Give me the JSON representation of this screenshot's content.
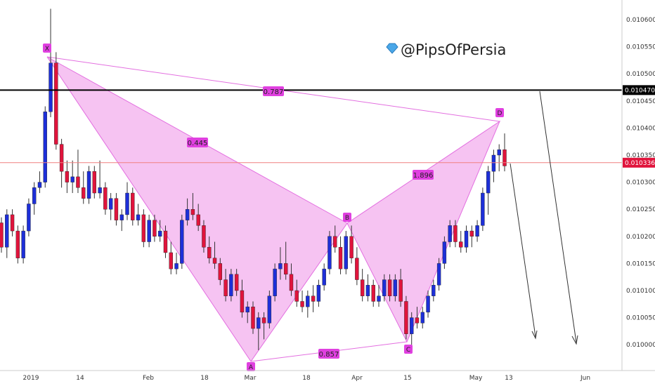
{
  "chart_data": {
    "type": "candlestick",
    "watermark": "@PipsOfPersia",
    "x_ticks": [
      "2019",
      "14",
      "Feb",
      "18",
      "Mar",
      "18",
      "Apr",
      "15",
      "May",
      "13",
      "Jun"
    ],
    "y_ticks": [
      "0.010600",
      "0.010550",
      "0.010500",
      "0.010450",
      "0.010400",
      "0.010350",
      "0.010300",
      "0.010250",
      "0.010200",
      "0.010150",
      "0.010100",
      "0.010050",
      "0.010000"
    ],
    "ylim": [
      0.009975,
      0.010625
    ],
    "price_marker": "0.010336",
    "level_marker": "0.010470",
    "colors": {
      "bull": "#1d2fd8",
      "bear": "#e0143c",
      "pattern_fill": "#f5b8f0",
      "pattern_line": "#e36fe0",
      "label_bg": "#e040e0"
    },
    "pattern_points": [
      "X",
      "A",
      "B",
      "C",
      "D"
    ],
    "ratios": [
      "0.787",
      "0.445",
      "1.896",
      "0.857"
    ],
    "candles": [
      [
        0.010225,
        0.010235,
        0.01017,
        0.01018
      ],
      [
        0.01018,
        0.01025,
        0.01016,
        0.01024
      ],
      [
        0.01024,
        0.01025,
        0.0102,
        0.01021
      ],
      [
        0.01021,
        0.01022,
        0.01015,
        0.01016
      ],
      [
        0.01016,
        0.01022,
        0.01015,
        0.01021
      ],
      [
        0.01021,
        0.01027,
        0.0102,
        0.01026
      ],
      [
        0.01026,
        0.0103,
        0.01024,
        0.01029
      ],
      [
        0.01029,
        0.01032,
        0.01028,
        0.0103
      ],
      [
        0.0103,
        0.01044,
        0.01029,
        0.01043
      ],
      [
        0.01043,
        0.01062,
        0.01042,
        0.01052
      ],
      [
        0.01052,
        0.01054,
        0.01036,
        0.01037
      ],
      [
        0.01037,
        0.01038,
        0.01029,
        0.01032
      ],
      [
        0.01032,
        0.01034,
        0.01028,
        0.0103
      ],
      [
        0.0103,
        0.01034,
        0.01028,
        0.01031
      ],
      [
        0.01031,
        0.01036,
        0.01028,
        0.01029
      ],
      [
        0.01029,
        0.01032,
        0.01026,
        0.01027
      ],
      [
        0.01027,
        0.01033,
        0.01026,
        0.01032
      ],
      [
        0.01032,
        0.01033,
        0.01027,
        0.01028
      ],
      [
        0.01028,
        0.01034,
        0.01027,
        0.01029
      ],
      [
        0.01029,
        0.0103,
        0.01024,
        0.01025
      ],
      [
        0.01025,
        0.01028,
        0.01023,
        0.01027
      ],
      [
        0.01027,
        0.01028,
        0.01022,
        0.01023
      ],
      [
        0.01023,
        0.01025,
        0.01021,
        0.01024
      ],
      [
        0.01024,
        0.0103,
        0.01023,
        0.01028
      ],
      [
        0.01028,
        0.01029,
        0.01022,
        0.01023
      ],
      [
        0.01023,
        0.01026,
        0.01022,
        0.01024
      ],
      [
        0.01024,
        0.01025,
        0.01018,
        0.01019
      ],
      [
        0.01019,
        0.01024,
        0.01018,
        0.01023
      ],
      [
        0.01023,
        0.01024,
        0.01019,
        0.0102
      ],
      [
        0.0102,
        0.01023,
        0.01019,
        0.01021
      ],
      [
        0.01021,
        0.01022,
        0.01016,
        0.01017
      ],
      [
        0.01017,
        0.01019,
        0.01013,
        0.01014
      ],
      [
        0.01014,
        0.01017,
        0.01013,
        0.01015
      ],
      [
        0.01015,
        0.01024,
        0.01014,
        0.01023
      ],
      [
        0.01023,
        0.01027,
        0.01022,
        0.01025
      ],
      [
        0.01025,
        0.01028,
        0.01023,
        0.01024
      ],
      [
        0.01024,
        0.01026,
        0.01021,
        0.01022
      ],
      [
        0.01022,
        0.01023,
        0.01017,
        0.01018
      ],
      [
        0.01018,
        0.0102,
        0.01015,
        0.01016
      ],
      [
        0.01016,
        0.01019,
        0.01014,
        0.01015
      ],
      [
        0.01015,
        0.01016,
        0.01011,
        0.01012
      ],
      [
        0.01012,
        0.01014,
        0.01008,
        0.01009
      ],
      [
        0.01009,
        0.01014,
        0.01008,
        0.01013
      ],
      [
        0.01013,
        0.01014,
        0.01009,
        0.0101
      ],
      [
        0.0101,
        0.01012,
        0.01005,
        0.01006
      ],
      [
        0.01006,
        0.01008,
        0.01004,
        0.01007
      ],
      [
        0.01007,
        0.01008,
        0.01002,
        0.01003
      ],
      [
        0.01003,
        0.01006,
        0.00999,
        0.01005
      ],
      [
        0.01005,
        0.01006,
        0.01001,
        0.01004
      ],
      [
        0.01004,
        0.0101,
        0.01003,
        0.01009
      ],
      [
        0.01009,
        0.01015,
        0.01008,
        0.01014
      ],
      [
        0.01014,
        0.01018,
        0.01012,
        0.01015
      ],
      [
        0.01015,
        0.01019,
        0.01012,
        0.01013
      ],
      [
        0.01013,
        0.01015,
        0.01009,
        0.0101
      ],
      [
        0.0101,
        0.01012,
        0.01007,
        0.01008
      ],
      [
        0.01008,
        0.0101,
        0.01006,
        0.01007
      ],
      [
        0.01007,
        0.0101,
        0.01005,
        0.01009
      ],
      [
        0.01009,
        0.01011,
        0.01006,
        0.01008
      ],
      [
        0.01008,
        0.01012,
        0.01007,
        0.01011
      ],
      [
        0.01011,
        0.01015,
        0.0101,
        0.01014
      ],
      [
        0.01014,
        0.01021,
        0.01013,
        0.0102
      ],
      [
        0.0102,
        0.01022,
        0.01017,
        0.01018
      ],
      [
        0.01018,
        0.0102,
        0.01013,
        0.01014
      ],
      [
        0.01014,
        0.01021,
        0.01013,
        0.0102
      ],
      [
        0.0102,
        0.01022,
        0.01015,
        0.01016
      ],
      [
        0.01016,
        0.01018,
        0.01011,
        0.01012
      ],
      [
        0.01012,
        0.01014,
        0.01008,
        0.01009
      ],
      [
        0.01009,
        0.01013,
        0.01008,
        0.01011
      ],
      [
        0.01011,
        0.01012,
        0.01007,
        0.01008
      ],
      [
        0.01008,
        0.01011,
        0.01007,
        0.01009
      ],
      [
        0.01009,
        0.01013,
        0.01008,
        0.01012
      ],
      [
        0.01012,
        0.01013,
        0.01008,
        0.01009
      ],
      [
        0.01009,
        0.01013,
        0.01008,
        0.01012
      ],
      [
        0.01012,
        0.01014,
        0.01007,
        0.01008
      ],
      [
        0.01008,
        0.01009,
        0.01001,
        0.01002
      ],
      [
        0.01002,
        0.01006,
        0.01,
        0.01005
      ],
      [
        0.01005,
        0.01007,
        0.01003,
        0.01004
      ],
      [
        0.01004,
        0.01007,
        0.01003,
        0.01006
      ],
      [
        0.01006,
        0.0101,
        0.01005,
        0.01009
      ],
      [
        0.01009,
        0.01012,
        0.01008,
        0.01011
      ],
      [
        0.01011,
        0.01016,
        0.0101,
        0.01015
      ],
      [
        0.01015,
        0.0102,
        0.01014,
        0.01019
      ],
      [
        0.01019,
        0.01023,
        0.01018,
        0.01022
      ],
      [
        0.01022,
        0.01023,
        0.01018,
        0.01019
      ],
      [
        0.01019,
        0.01021,
        0.01017,
        0.01018
      ],
      [
        0.01018,
        0.01022,
        0.01017,
        0.01021
      ],
      [
        0.01021,
        0.01022,
        0.01018,
        0.0102
      ],
      [
        0.0102,
        0.01023,
        0.01019,
        0.01022
      ],
      [
        0.01022,
        0.01029,
        0.01021,
        0.01028
      ],
      [
        0.01028,
        0.01033,
        0.01024,
        0.01032
      ],
      [
        0.01032,
        0.01036,
        0.0103,
        0.01035
      ],
      [
        0.01035,
        0.01037,
        0.01032,
        0.01036
      ],
      [
        0.01036,
        0.01039,
        0.01032,
        0.01033
      ]
    ]
  }
}
